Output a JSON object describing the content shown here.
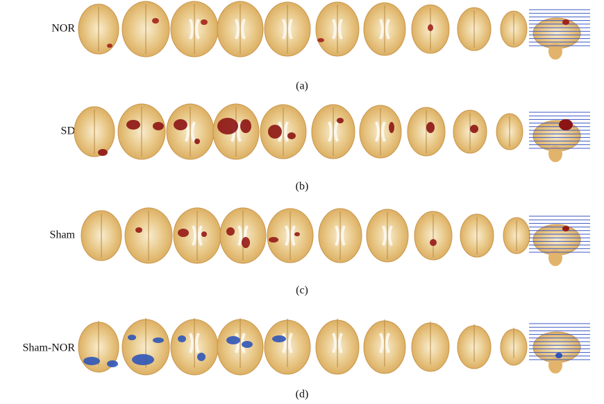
{
  "rows": [
    {
      "label": "NOR",
      "caption": "(a)"
    },
    {
      "label": "SD",
      "caption": "(b)"
    },
    {
      "label": "Sham",
      "caption": "(c)"
    },
    {
      "label": "Sham-NOR",
      "caption": "(d)"
    }
  ]
}
